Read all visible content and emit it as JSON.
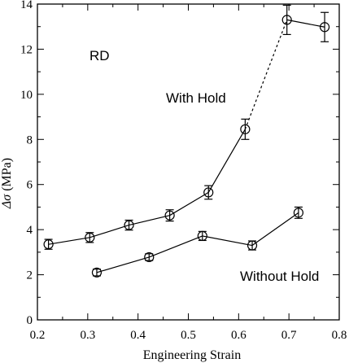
{
  "chart_data": {
    "type": "line",
    "title": "",
    "xlabel": "Engineering Strain",
    "ylabel_symbol": "Δσ",
    "ylabel_unit": " (MPa)",
    "xlim": [
      0.2,
      0.8
    ],
    "ylim": [
      0,
      14
    ],
    "x_ticks": [
      "0.2",
      "0.3",
      "0.4",
      "0.5",
      "0.6",
      "0.7",
      "0.8"
    ],
    "y_ticks": [
      "0",
      "2",
      "4",
      "6",
      "8",
      "10",
      "12",
      "14"
    ],
    "grid": false,
    "annotations": [
      {
        "text": "RD"
      },
      {
        "text": "With Hold"
      },
      {
        "text": "Without Hold"
      }
    ],
    "series": [
      {
        "label": "With Hold",
        "color": "#000000",
        "marker": "open-circle",
        "points": [
          {
            "x": 0.222,
            "y": 3.35,
            "err": 0.22
          },
          {
            "x": 0.304,
            "y": 3.65,
            "err": 0.22
          },
          {
            "x": 0.382,
            "y": 4.2,
            "err": 0.22
          },
          {
            "x": 0.463,
            "y": 4.63,
            "err": 0.25
          },
          {
            "x": 0.54,
            "y": 5.65,
            "err": 0.3
          },
          {
            "x": 0.613,
            "y": 8.45,
            "err": 0.45
          },
          {
            "x": 0.696,
            "y": 13.3,
            "err": 0.65
          },
          {
            "x": 0.771,
            "y": 12.98,
            "err": 0.65
          }
        ],
        "segment_styles": [
          "solid",
          "solid",
          "solid",
          "solid",
          "solid",
          "dashed",
          "solid"
        ]
      },
      {
        "label": "Without Hold",
        "color": "#000000",
        "marker": "open-circle",
        "points": [
          {
            "x": 0.318,
            "y": 2.1,
            "err": 0.15
          },
          {
            "x": 0.422,
            "y": 2.78,
            "err": 0.15
          },
          {
            "x": 0.528,
            "y": 3.72,
            "err": 0.2
          },
          {
            "x": 0.627,
            "y": 3.3,
            "err": 0.2
          },
          {
            "x": 0.719,
            "y": 4.75,
            "err": 0.25
          }
        ],
        "segment_styles": [
          "solid",
          "solid",
          "solid",
          "solid"
        ]
      }
    ]
  }
}
